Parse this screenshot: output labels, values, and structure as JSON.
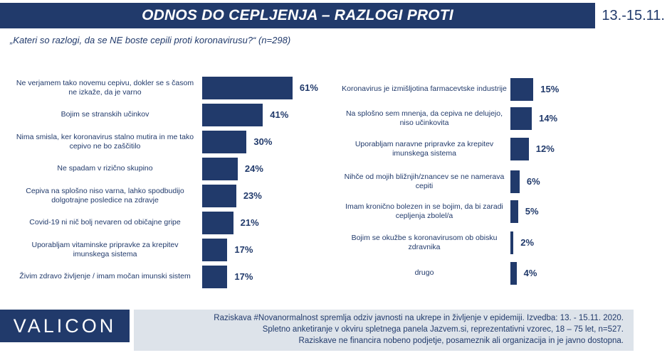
{
  "header": {
    "title": "ODNOS DO CEPLJENJA – RAZLOGI PROTI",
    "date": "13.-15.11."
  },
  "subtitle": "„Kateri so razlogi, da se NE boste cepili proti koronavirusu?“ (n=298)",
  "chart_data": [
    {
      "type": "bar",
      "orientation": "horizontal",
      "categories": [
        "Ne verjamem tako novemu cepivu, dokler se s časom ne izkaže, da je varno",
        "Bojim se stranskih učinkov",
        "Nima smisla, ker koronavirus stalno mutira in me tako cepivo ne bo zaščitilo",
        "Ne spadam v rizično skupino",
        "Cepiva na splošno niso varna, lahko spodbudijo dolgotrajne posledice na zdravje",
        "Covid-19 ni nič bolj nevaren od običajne gripe",
        "Uporabljam vitaminske pripravke za krepitev imunskega sistema",
        "Živim zdravo življenje / imam močan imunski sistem"
      ],
      "values": [
        61,
        41,
        30,
        24,
        23,
        21,
        17,
        17
      ],
      "value_labels": [
        "61%",
        "41%",
        "30%",
        "24%",
        "23%",
        "21%",
        "17%",
        "17%"
      ],
      "unit": "%",
      "color": "#213a6b"
    },
    {
      "type": "bar",
      "orientation": "horizontal",
      "categories": [
        "Koronavirus je izmišljotina farmacevtske industrije",
        "Na splošno sem mnenja, da cepiva ne delujejo, niso učinkovita",
        "Uporabljam naravne pripravke za krepitev imunskega sistema",
        "Nihče od mojih bližnjih/znancev se ne namerava cepiti",
        "Imam kronično bolezen in se bojim, da bi zaradi cepljenja zbolel/a",
        "Bojim se okužbe s koronavirusom ob obisku zdravnika",
        "drugo"
      ],
      "values": [
        15,
        14,
        12,
        6,
        5,
        2,
        4
      ],
      "value_labels": [
        "15%",
        "14%",
        "12%",
        "6%",
        "5%",
        "2%",
        "4%"
      ],
      "unit": "%",
      "color": "#213a6b"
    }
  ],
  "footer": {
    "logo": "VALICON",
    "lines": [
      "Raziskava #Novanormalnost spremlja odziv javnosti na ukrepe in življenje v epidemiji. Izvedba: 13. - 15.11. 2020.",
      "Spletno anketiranje v okviru spletnega panela Jazvem.si, reprezentativni vzorec, 18 – 75 let, n=527.",
      "Raziskave ne financira nobeno podjetje, posameznik ali organizacija in je javno dostopna."
    ]
  }
}
